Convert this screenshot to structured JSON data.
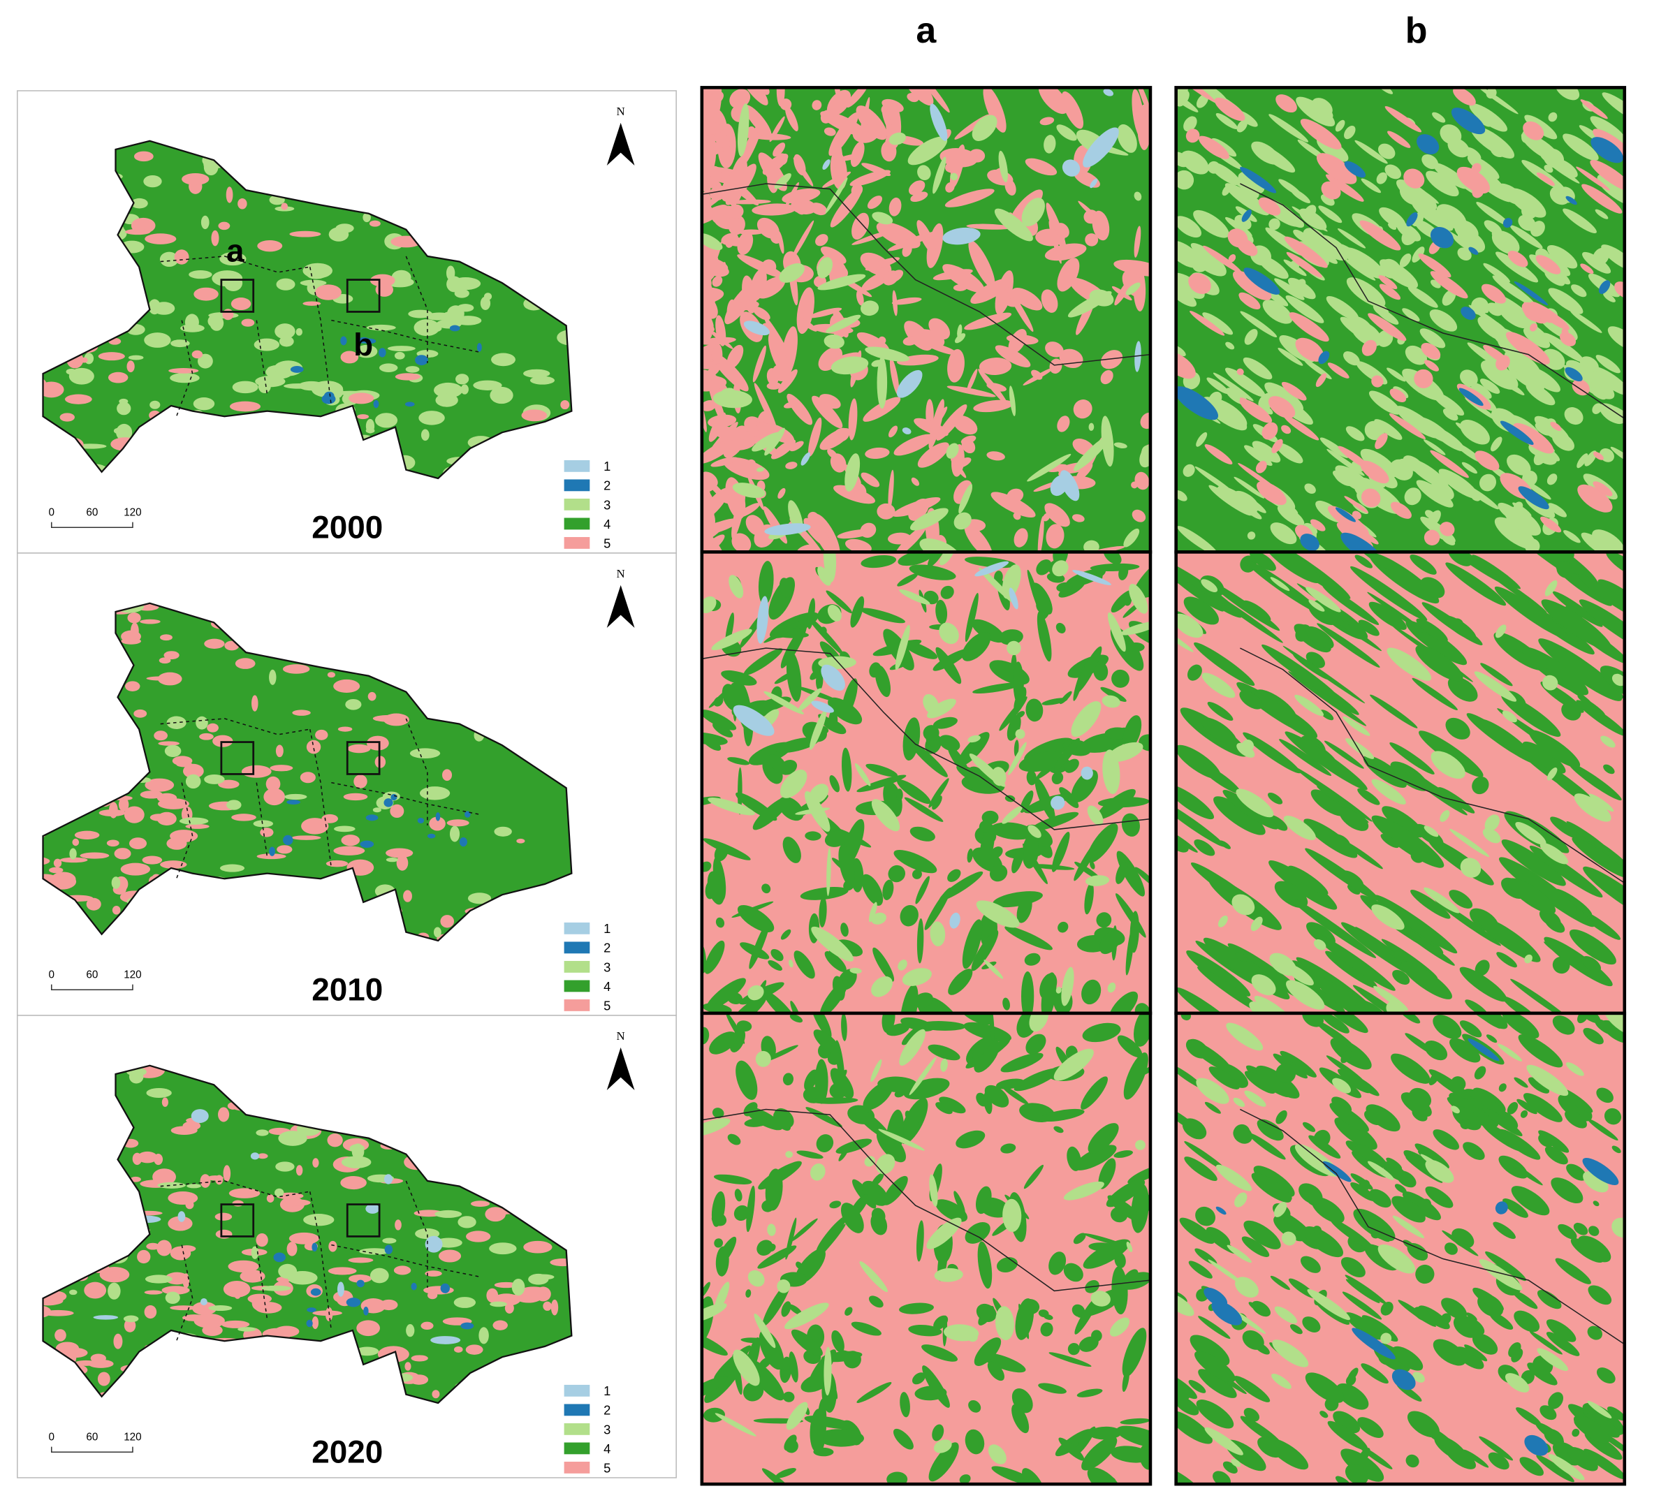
{
  "columns": [
    "a",
    "b"
  ],
  "panels": [
    {
      "year": "2000",
      "box_labels": [
        "a",
        "b"
      ]
    },
    {
      "year": "2010"
    },
    {
      "year": "2020"
    }
  ],
  "north": "N",
  "scale_labels": [
    "0",
    "60",
    "120"
  ],
  "legend": [
    {
      "label": "1",
      "color": "#a6cee3"
    },
    {
      "label": "2",
      "color": "#1f78b4"
    },
    {
      "label": "3",
      "color": "#b2df8a"
    },
    {
      "label": "4",
      "color": "#33a02c"
    },
    {
      "label": "5",
      "color": "#f59d9b"
    }
  ]
}
